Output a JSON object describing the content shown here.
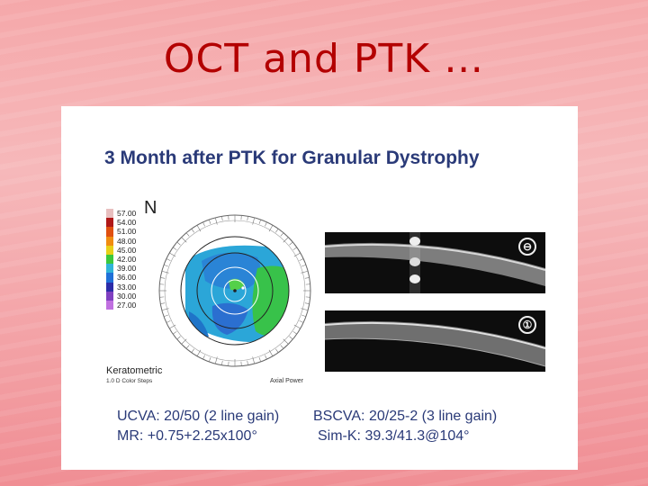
{
  "slide": {
    "title": "OCT and PTK …"
  },
  "figure": {
    "title": "3 Month after PTK for Granular Dystrophy",
    "orientation_label": "N",
    "scale": [
      {
        "label": "57.00",
        "color": "#e8bfbf"
      },
      {
        "label": "54.00",
        "color": "#b01818"
      },
      {
        "label": "51.00",
        "color": "#e05010"
      },
      {
        "label": "48.00",
        "color": "#f08c10"
      },
      {
        "label": "45.00",
        "color": "#e8d018"
      },
      {
        "label": "42.00",
        "color": "#3cc83c"
      },
      {
        "label": "39.00",
        "color": "#30b4d8"
      },
      {
        "label": "36.00",
        "color": "#2070d8"
      },
      {
        "label": "33.00",
        "color": "#2c2ca8"
      },
      {
        "label": "30.00",
        "color": "#8040c0"
      },
      {
        "label": "27.00",
        "color": "#c070e0"
      }
    ],
    "map_type": "Keratometric",
    "color_steps": "1.0 D Color Steps",
    "axial_label": "Axial Power",
    "oct_icons": [
      "⊖",
      "①"
    ],
    "stats": {
      "ucva": "UCVA: 20/50 (2 line gain)",
      "bscva": "BSCVA: 20/25-2 (3 line gain)",
      "mr": "MR: +0.75+2.25x100°",
      "simk": "Sim-K: 39.3/41.3@104°"
    }
  }
}
